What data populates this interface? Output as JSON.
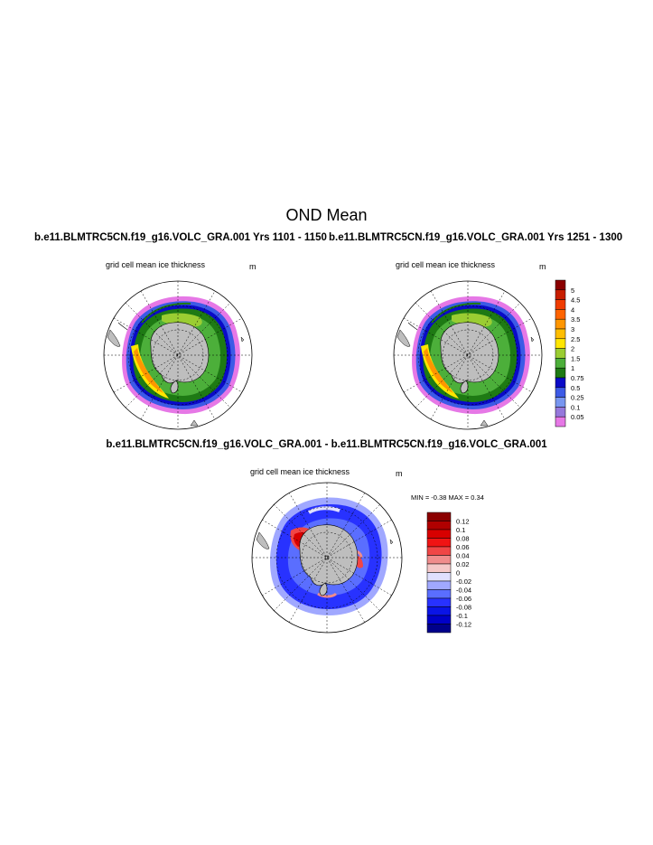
{
  "figure": {
    "title": "OND Mean",
    "panels": [
      {
        "run": "b.e11.BLMTRC5CN.f19_g16.VOLC_GRA.001  Yrs 1101 - 1150",
        "subtitle": "grid cell mean ice thickness",
        "units": "m"
      },
      {
        "run": "b.e11.BLMTRC5CN.f19_g16.VOLC_GRA.001  Yrs 1251 - 1300",
        "subtitle": "grid cell mean ice thickness",
        "units": "m"
      }
    ],
    "difference": {
      "title": "b.e11.BLMTRC5CN.f19_g16.VOLC_GRA.001 - b.e11.BLMTRC5CN.f19_g16.VOLC_GRA.001",
      "subtitle": "grid cell mean ice thickness",
      "units": "m",
      "stats": "MIN =  -0.38 MAX =   0.34"
    }
  },
  "colorbars": {
    "thickness": {
      "labels": [
        "5",
        "4.5",
        "4",
        "3.5",
        "3",
        "2.5",
        "2",
        "1.5",
        "1",
        "0.75",
        "0.5",
        "0.25",
        "0.1",
        "0.05"
      ],
      "colors": [
        "#8b0000",
        "#c81e00",
        "#f03c00",
        "#ff6400",
        "#ff9600",
        "#ffbe00",
        "#ffe600",
        "#9acd32",
        "#4caf3a",
        "#1e7a14",
        "#0a0ac8",
        "#3c5ae6",
        "#7896f0",
        "#9678dc",
        "#e678e6"
      ]
    },
    "difference": {
      "labels": [
        "0.12",
        "0.1",
        "0.08",
        "0.06",
        "0.04",
        "0.02",
        "0",
        "-0.02",
        "-0.04",
        "-0.06",
        "-0.08",
        "-0.1",
        "-0.12"
      ],
      "colors": [
        "#8b0000",
        "#b00000",
        "#d80000",
        "#f01414",
        "#f04646",
        "#f08c8c",
        "#f5c8c8",
        "#e0e0ff",
        "#a0a8ff",
        "#5a6eff",
        "#2832ff",
        "#0a14e6",
        "#0000c8",
        "#00008b"
      ]
    }
  }
}
